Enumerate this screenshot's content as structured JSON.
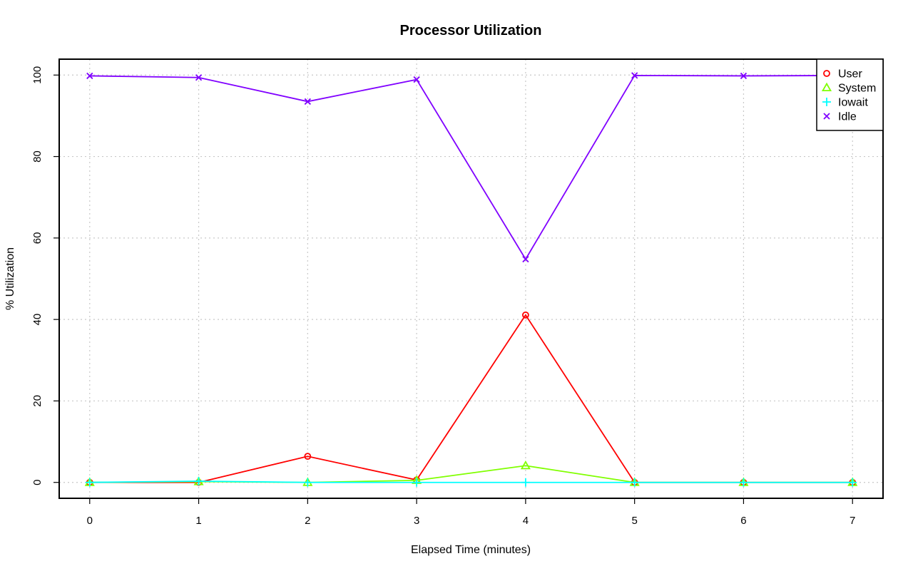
{
  "chart_data": {
    "type": "line",
    "title": "Processor Utilization",
    "xlabel": "Elapsed Time (minutes)",
    "ylabel": "% Utilization",
    "x": [
      0,
      1,
      2,
      3,
      4,
      5,
      6,
      7
    ],
    "xlim": [
      -0.28,
      7.28
    ],
    "ylim": [
      -3.9,
      103.9
    ],
    "xticks": [
      0,
      1,
      2,
      3,
      4,
      5,
      6,
      7
    ],
    "yticks": [
      0,
      20,
      40,
      60,
      80,
      100
    ],
    "grid": true,
    "legend_position": "top-right",
    "series": [
      {
        "name": "User",
        "color": "#ff0000",
        "marker": "circle",
        "values": [
          0,
          0,
          6.4,
          0.6,
          41.1,
          0,
          0,
          0
        ]
      },
      {
        "name": "System",
        "color": "#80ff00",
        "marker": "triangle",
        "values": [
          0,
          0.2,
          0,
          0.5,
          4.1,
          0,
          0,
          0
        ]
      },
      {
        "name": "Iowait",
        "color": "#00ffff",
        "marker": "plus",
        "values": [
          0,
          0.3,
          0,
          0,
          0,
          0,
          0,
          0
        ]
      },
      {
        "name": "Idle",
        "color": "#8000ff",
        "marker": "cross",
        "values": [
          99.8,
          99.4,
          93.5,
          98.9,
          54.8,
          99.9,
          99.8,
          99.9
        ]
      }
    ]
  }
}
